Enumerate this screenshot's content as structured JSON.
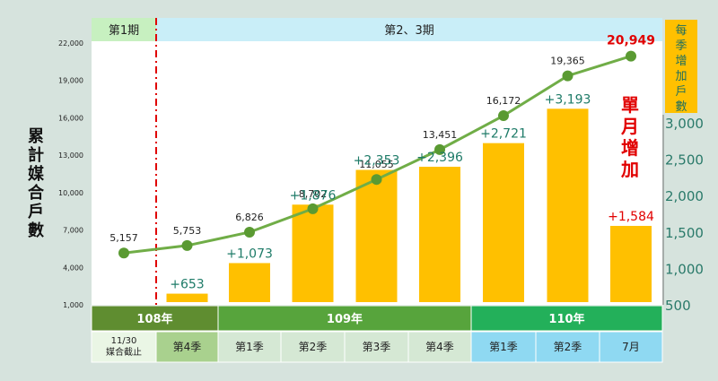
{
  "left_axis_title": "累計媒合戶數",
  "right_axis_title": "每季增加戶數",
  "monthly_note": "單月增加",
  "phase_labels": {
    "phase1": "第1期",
    "phase23": "第2、3期"
  },
  "year_labels": [
    "108年",
    "109年",
    "110年"
  ],
  "period_labels": [
    "11/30\n媒合截止",
    "第4季",
    "第1季",
    "第2季",
    "第3季",
    "第4季",
    "第1季",
    "第2季",
    "7月"
  ],
  "colors": {
    "background": "#d6e3dd",
    "plot_bg": "#ffffff",
    "phase1_header": "#c7f0c0",
    "phase23_header": "#c9eef8",
    "bar": "#ffc000",
    "line": "#70ad47",
    "point": "#5a9a32",
    "bar_label": "#1e7b68",
    "year_108": "#5f8d30",
    "year_109": "#57a43c",
    "year_110": "#23b05a",
    "cell_108": "#a9d18e",
    "cell_109": "#d5e8d4",
    "cell_110": "#8fd9f2",
    "cell_first": "#eaf6e5",
    "highlight_red": "#e10000",
    "divider_red": "#e00000"
  },
  "chart_data": {
    "type": "bar+line",
    "categories": [
      "11/30 媒合截止",
      "108年 第4季",
      "109年 第1季",
      "109年 第2季",
      "109年 第3季",
      "109年 第4季",
      "110年 第1季",
      "110年 第2季",
      "110年 7月"
    ],
    "line_series": {
      "axis": "left",
      "values": [
        5157,
        5753,
        6826,
        8702,
        11055,
        13451,
        16172,
        19365,
        20949
      ],
      "labels": [
        "5,157",
        "5,753",
        "6,826",
        "8,702",
        "11,055",
        "13,451",
        "16,172",
        "19,365",
        "20,949"
      ]
    },
    "bar_series": {
      "axis": "right",
      "values": [
        null,
        653,
        1073,
        1876,
        2353,
        2396,
        2721,
        3193,
        1584
      ],
      "labels": [
        "",
        "+653",
        "+1,073",
        "+1,876",
        "+2,353",
        "+2,396",
        "+2,721",
        "+3,193",
        "+1,584"
      ]
    },
    "left_axis": {
      "ylim": [
        1000,
        22000
      ],
      "tick_values": [
        1000,
        4000,
        7000,
        10000,
        13000,
        16000,
        19000,
        22000
      ],
      "tick_labels": [
        "1,000",
        "4,000",
        "7,000",
        "10,000",
        "13,000",
        "16,000",
        "19,000",
        "22,000"
      ]
    },
    "right_axis": {
      "ylim": [
        500,
        3400
      ],
      "tick_values": [
        500,
        1000,
        1500,
        2000,
        2500,
        3000
      ],
      "tick_labels": [
        "500",
        "1,000",
        "1,500",
        "2,000",
        "2,500",
        "3,000"
      ]
    },
    "grid": false,
    "legend": "none"
  }
}
